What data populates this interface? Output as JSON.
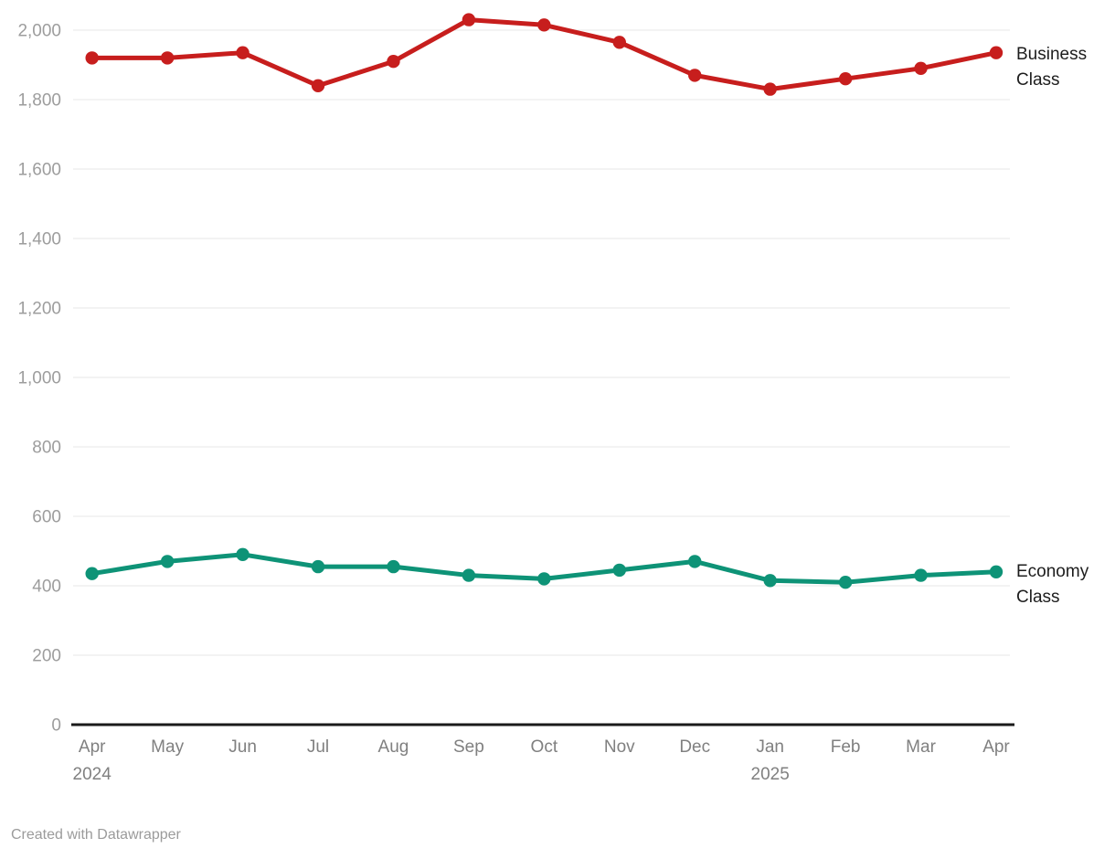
{
  "chart_data": {
    "type": "line",
    "title": "",
    "xlabel": "",
    "ylabel": "",
    "categories": [
      "Apr",
      "May",
      "Jun",
      "Jul",
      "Aug",
      "Sep",
      "Oct",
      "Nov",
      "Dec",
      "Jan",
      "Feb",
      "Mar",
      "Apr"
    ],
    "category_year_labels": {
      "0": "2024",
      "9": "2025"
    },
    "series": [
      {
        "name": "Business Class",
        "color": "#c71e1d",
        "values": [
          1920,
          1920,
          1935,
          1840,
          1910,
          2030,
          2015,
          1965,
          1870,
          1830,
          1860,
          1890,
          1935
        ]
      },
      {
        "name": "Economy Class",
        "color": "#0e9377",
        "values": [
          435,
          470,
          490,
          455,
          455,
          430,
          420,
          445,
          470,
          415,
          410,
          430,
          440
        ]
      }
    ],
    "ylim": [
      0,
      2000
    ],
    "ytick_step": 200,
    "ytick_labels": [
      "0",
      "200",
      "400",
      "600",
      "800",
      "1,000",
      "1,200",
      "1,400",
      "1,600",
      "1,800",
      "2,000"
    ],
    "grid": true,
    "legend_position": "right-of-line-end"
  },
  "footer": {
    "credit": "Created with Datawrapper"
  }
}
